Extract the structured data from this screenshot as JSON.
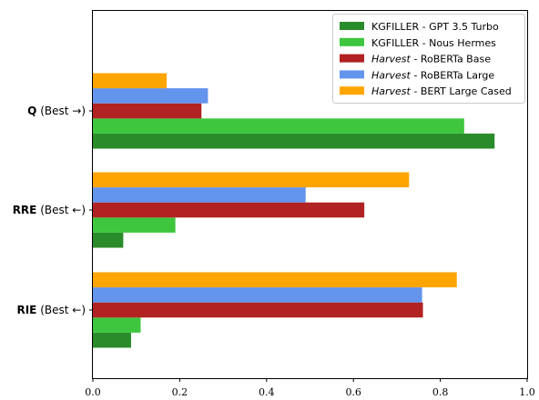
{
  "chart_data": {
    "type": "bar",
    "orientation": "horizontal",
    "categories": [
      {
        "bold": "Q",
        "rest": " (Best →)"
      },
      {
        "bold": "RRE",
        "rest": " (Best ←)"
      },
      {
        "bold": "RIE",
        "rest": " (Best ←)"
      }
    ],
    "series": [
      {
        "name_italic": "",
        "name": "KGFILLER - GPT 3.5 Turbo",
        "color": "#2a8b2a",
        "values": [
          0.925,
          0.07,
          0.088
        ]
      },
      {
        "name_italic": "",
        "name": "KGFILLER - Nous Hermes",
        "color": "#3ec63e",
        "values": [
          0.855,
          0.19,
          0.11
        ]
      },
      {
        "name_italic": "Harvest",
        "name": " - RoBERTa Base",
        "color": "#b22222",
        "values": [
          0.25,
          0.625,
          0.76
        ]
      },
      {
        "name_italic": "Harvest",
        "name": " - RoBERTa Large",
        "color": "#6495ed",
        "values": [
          0.265,
          0.49,
          0.758
        ]
      },
      {
        "name_italic": "Harvest",
        "name": " - BERT Large Cased",
        "color": "#ffa500",
        "values": [
          0.17,
          0.728,
          0.838
        ]
      }
    ],
    "xlim": [
      0,
      1.0
    ],
    "xticks": [
      "0.0",
      "0.2",
      "0.4",
      "0.6",
      "0.8",
      "1.0"
    ],
    "legend_position": "top-right",
    "grid": false
  }
}
